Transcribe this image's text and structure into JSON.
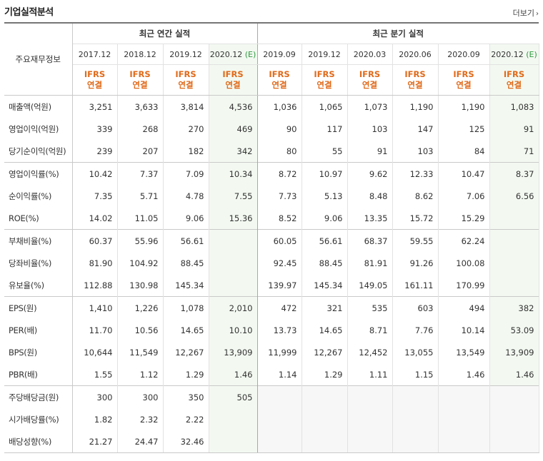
{
  "section": {
    "title": "기업실적분석",
    "more_label": "더보기"
  },
  "table": {
    "corner_label": "주요재무정보",
    "groups": {
      "annual": "최근 연간 실적",
      "quarterly": "최근 분기 실적"
    },
    "periods": [
      {
        "label": "2017.12",
        "est": ""
      },
      {
        "label": "2018.12",
        "est": ""
      },
      {
        "label": "2019.12",
        "est": ""
      },
      {
        "label": "2020.12",
        "est": "(E)"
      },
      {
        "label": "2019.09",
        "est": ""
      },
      {
        "label": "2019.12",
        "est": ""
      },
      {
        "label": "2020.03",
        "est": ""
      },
      {
        "label": "2020.06",
        "est": ""
      },
      {
        "label": "2020.09",
        "est": ""
      },
      {
        "label": "2020.12",
        "est": "(E)"
      }
    ],
    "ifrs_line1": "IFRS",
    "ifrs_line2": "연결",
    "rows": [
      {
        "label": "매출액(억원)",
        "values": [
          "3,251",
          "3,633",
          "3,814",
          "4,536",
          "1,036",
          "1,065",
          "1,073",
          "1,190",
          "1,190",
          "1,083"
        ]
      },
      {
        "label": "영업이익(억원)",
        "values": [
          "339",
          "268",
          "270",
          "469",
          "90",
          "117",
          "103",
          "147",
          "125",
          "91"
        ]
      },
      {
        "label": "당기순이익(억원)",
        "values": [
          "239",
          "207",
          "182",
          "342",
          "80",
          "55",
          "91",
          "103",
          "84",
          "71"
        ]
      },
      {
        "label": "영업이익률(%)",
        "values": [
          "10.42",
          "7.37",
          "7.09",
          "10.34",
          "8.72",
          "10.97",
          "9.62",
          "12.33",
          "10.47",
          "8.37"
        ]
      },
      {
        "label": "순이익률(%)",
        "values": [
          "7.35",
          "5.71",
          "4.78",
          "7.55",
          "7.73",
          "5.13",
          "8.48",
          "8.62",
          "7.06",
          "6.56"
        ]
      },
      {
        "label": "ROE(%)",
        "values": [
          "14.02",
          "11.05",
          "9.06",
          "15.36",
          "8.52",
          "9.06",
          "13.35",
          "15.72",
          "15.29",
          ""
        ]
      },
      {
        "label": "부채비율(%)",
        "values": [
          "60.37",
          "55.96",
          "56.61",
          "",
          "60.05",
          "56.61",
          "68.37",
          "59.55",
          "62.24",
          ""
        ]
      },
      {
        "label": "당좌비율(%)",
        "values": [
          "81.90",
          "104.92",
          "88.45",
          "",
          "92.45",
          "88.45",
          "81.91",
          "91.26",
          "100.08",
          ""
        ]
      },
      {
        "label": "유보율(%)",
        "values": [
          "112.88",
          "130.98",
          "145.34",
          "",
          "139.97",
          "145.34",
          "149.05",
          "161.11",
          "170.99",
          ""
        ]
      },
      {
        "label": "EPS(원)",
        "values": [
          "1,410",
          "1,226",
          "1,078",
          "2,010",
          "472",
          "321",
          "535",
          "603",
          "494",
          "382"
        ]
      },
      {
        "label": "PER(배)",
        "values": [
          "11.70",
          "10.56",
          "14.65",
          "10.10",
          "13.73",
          "14.65",
          "8.71",
          "7.76",
          "10.14",
          "53.09"
        ]
      },
      {
        "label": "BPS(원)",
        "values": [
          "10,644",
          "11,549",
          "12,267",
          "13,909",
          "11,999",
          "12,267",
          "12,452",
          "13,055",
          "13,549",
          "13,909"
        ]
      },
      {
        "label": "PBR(배)",
        "values": [
          "1.55",
          "1.12",
          "1.29",
          "1.46",
          "1.14",
          "1.29",
          "1.11",
          "1.15",
          "1.46",
          "1.46"
        ]
      },
      {
        "label": "주당배당금(원)",
        "values": [
          "300",
          "300",
          "350",
          "505",
          "",
          "",
          "",
          "",
          "",
          ""
        ]
      },
      {
        "label": "시가배당률(%)",
        "values": [
          "1.82",
          "2.32",
          "2.22",
          "",
          "",
          "",
          "",
          "",
          "",
          ""
        ]
      },
      {
        "label": "배당성향(%)",
        "values": [
          "21.27",
          "24.47",
          "32.46",
          "",
          "",
          "",
          "",
          "",
          "",
          ""
        ]
      }
    ]
  }
}
